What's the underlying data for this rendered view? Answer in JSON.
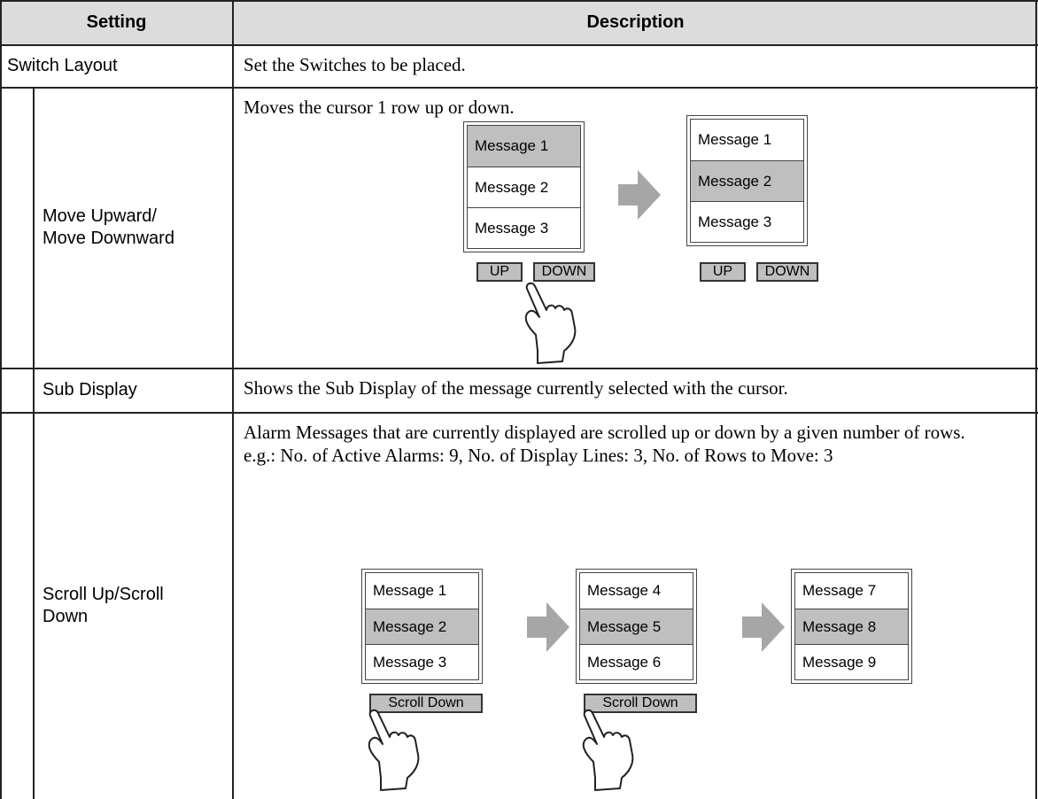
{
  "table": {
    "header": {
      "setting": "Setting",
      "description": "Description"
    },
    "rows": [
      {
        "setting": [
          "Switch Layout"
        ],
        "description": [
          "Set the Switches to be placed."
        ]
      },
      {
        "setting": [
          "Move Upward/",
          "Move Downward"
        ],
        "description": [
          "Moves the cursor 1 row up or down."
        ],
        "figure": [
          {
            "messages": [
              "Message 1",
              "Message 2",
              "Message 3"
            ],
            "selected": 0,
            "buttons": [
              "UP",
              "DOWN"
            ]
          },
          {
            "messages": [
              "Message 1",
              "Message 2",
              "Message 3"
            ],
            "selected": 1,
            "buttons": [
              "UP",
              "DOWN"
            ]
          }
        ]
      },
      {
        "setting": [
          "Sub Display"
        ],
        "description": [
          "Shows the Sub Display of the message currently selected with the cursor."
        ]
      },
      {
        "setting": [
          "Scroll Up/Scroll",
          "Down"
        ],
        "description": [
          "Alarm Messages that are currently displayed are scrolled up or down by a given number of rows.",
          "e.g.: No. of Active Alarms: 9, No. of Display Lines: 3, No. of Rows to Move: 3"
        ],
        "figure": [
          {
            "messages": [
              "Message 1",
              "Message 2",
              "Message 3"
            ],
            "selected": 1,
            "buttons": [
              "Scroll Down"
            ]
          },
          {
            "messages": [
              "Message 4",
              "Message 5",
              "Message 6"
            ],
            "selected": 1,
            "buttons": [
              "Scroll Down"
            ]
          },
          {
            "messages": [
              "Message 7",
              "Message 8",
              "Message 9"
            ],
            "selected": 1
          }
        ]
      }
    ]
  }
}
